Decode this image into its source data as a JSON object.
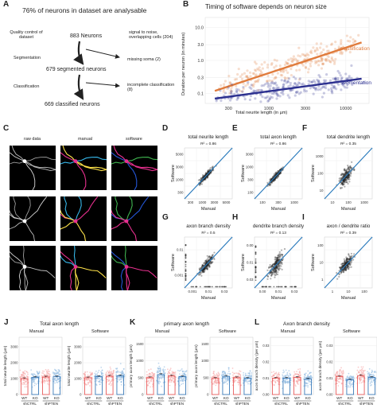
{
  "panels": {
    "A": {
      "letter": "A",
      "title": "76% of neurons in dataset are analysable",
      "steps": [
        {
          "label": "Quality control of dataset",
          "count": "883 Neurons",
          "excluded": "signal to noise, overlapping cells (204)"
        },
        {
          "label": "Segmentation",
          "count": "679 segmented neurons",
          "excluded": "missing soma (2)"
        },
        {
          "label": "Classification",
          "count": "669 classified neurons",
          "excluded": "incomplete classification (8)"
        }
      ]
    },
    "B": {
      "letter": "B",
      "title": "Timing of software depends on neuron size"
    },
    "C": {
      "letter": "C",
      "columns": [
        "raw data",
        "manual",
        "software"
      ]
    },
    "J": {
      "letter": "J",
      "title": "Total axon length"
    },
    "K": {
      "letter": "K",
      "title": "primary axon length"
    },
    "L": {
      "letter": "L",
      "title": "Axon branch density"
    }
  },
  "chart_data": [
    {
      "id": "B",
      "type": "scatter",
      "title": "Timing of software depends on neuron size",
      "xlabel": "Total neurite length (in µm)",
      "ylabel": "Duration per neuron (in minutes)",
      "xscale": "log",
      "yscale": "log",
      "xticks": [
        "300",
        "1000",
        "3000",
        "10000"
      ],
      "yticks": [
        "10.0",
        "3.0",
        "1.0",
        "0.3",
        "0.1"
      ],
      "xlim": [
        150,
        20000
      ],
      "ylim": [
        0.05,
        20
      ],
      "series": [
        {
          "name": "classification",
          "color": "#e07b3c",
          "fit": [
            [
              200,
              0.12
            ],
            [
              16000,
              3.5
            ]
          ]
        },
        {
          "name": "segmentation",
          "color": "#2b2f8f",
          "fit": [
            [
              200,
              0.07
            ],
            [
              16000,
              0.28
            ]
          ]
        }
      ]
    },
    {
      "id": "D",
      "letter": "D",
      "type": "scatter",
      "title": "total neurite length",
      "r2": "R² = 0.86",
      "xlabel": "Manual",
      "ylabel": "Software",
      "xticks": [
        "300",
        "1000",
        "3000",
        "5000"
      ],
      "yticks": [
        "5000",
        "3000",
        "1000",
        "300"
      ],
      "outliers": false
    },
    {
      "id": "E",
      "letter": "E",
      "type": "scatter",
      "title": "total axon length",
      "r2": "R² = 0.86",
      "xlabel": "Manual",
      "ylabel": "Software",
      "xticks": [
        "100",
        "300",
        "1000"
      ],
      "yticks": [
        "3000",
        "1000",
        "300",
        "100"
      ],
      "outliers": false
    },
    {
      "id": "F",
      "letter": "F",
      "type": "scatter",
      "title": "total dendrite length",
      "r2": "R² = 0.35",
      "xlabel": "Manual",
      "ylabel": "Software",
      "xticks": [
        "10",
        "100",
        "1000"
      ],
      "yticks": [
        "1000",
        "100",
        "10"
      ],
      "outliers": false
    },
    {
      "id": "G",
      "letter": "G",
      "type": "scatter",
      "title": "axon branch density",
      "r2": "R² = 0.5",
      "xlabel": "Manual",
      "ylabel": "Software",
      "xticks": [
        "0.001",
        "0.01",
        "0.03"
      ],
      "yticks": [
        "0.01",
        "0.001"
      ],
      "outliers": true
    },
    {
      "id": "H",
      "letter": "H",
      "type": "scatter",
      "title": "dendrite branch density",
      "r2": "R² = 0.13",
      "xlabel": "Manual",
      "ylabel": "Software",
      "xticks": [
        "0.00",
        "0.01",
        "0.03"
      ],
      "yticks": [
        "0.00",
        "0.01",
        "0.03"
      ],
      "outliers": true
    },
    {
      "id": "I",
      "letter": "I",
      "type": "scatter",
      "title": "axon / dendrite ratio",
      "r2": "R² = 0.39",
      "xlabel": "Manual",
      "ylabel": "Software",
      "xticks": [
        "1",
        "10",
        "100"
      ],
      "yticks": [
        "100",
        "10",
        "1"
      ],
      "outliers": false
    },
    {
      "id": "J1",
      "type": "bar",
      "title": "Manual",
      "ylabel": "total neurite length (µm)",
      "categories": [
        "WT",
        "KO",
        "WT",
        "KO"
      ],
      "groups": [
        "shCTRL",
        "shPTEN"
      ],
      "yticks": [
        "3000",
        "2000",
        "1000",
        "0"
      ],
      "ylim": [
        0,
        3600
      ],
      "values": [
        1000,
        1080,
        1100,
        1120
      ]
    },
    {
      "id": "J2",
      "type": "bar",
      "title": "Software",
      "ylabel": "total neurite length (µm)",
      "categories": [
        "WT",
        "KO",
        "WT",
        "KO"
      ],
      "groups": [
        "shCTRL",
        "shPTEN"
      ],
      "yticks": [
        "3000",
        "2000",
        "1000",
        "0"
      ],
      "ylim": [
        0,
        3600
      ],
      "values": [
        1050,
        1120,
        1150,
        1180
      ]
    },
    {
      "id": "K1",
      "type": "bar",
      "title": "Manual",
      "ylabel": "primary axon length (µm)",
      "categories": [
        "WT",
        "KO",
        "WT",
        "KO"
      ],
      "groups": [
        "shCTRL",
        "shPTEN"
      ],
      "yticks": [
        "1500",
        "1000",
        "500",
        "0"
      ],
      "ylim": [
        0,
        1700
      ],
      "values": [
        500,
        590,
        550,
        530
      ]
    },
    {
      "id": "K2",
      "type": "bar",
      "title": "Software",
      "ylabel": "primary axon length (µm)",
      "categories": [
        "WT",
        "KO",
        "WT",
        "KO"
      ],
      "groups": [
        "shCTRL",
        "shPTEN"
      ],
      "yticks": [
        "1500",
        "1000",
        "500",
        "0"
      ],
      "ylim": [
        0,
        1700
      ],
      "values": [
        480,
        540,
        500,
        480
      ]
    },
    {
      "id": "L1",
      "type": "bar",
      "title": "Manual",
      "ylabel": "axon branch density (per µm)",
      "categories": [
        "WT",
        "KO",
        "WT",
        "KO"
      ],
      "groups": [
        "shCTRL",
        "shPTEN"
      ],
      "yticks": [
        "0.03",
        "0.02",
        "0.01",
        "0.00"
      ],
      "ylim": [
        0,
        0.035
      ],
      "values": [
        0.01,
        0.01,
        0.0105,
        0.0095
      ]
    },
    {
      "id": "L2",
      "type": "bar",
      "title": "Software",
      "ylabel": "axon branch density (per µm)",
      "categories": [
        "WT",
        "KO",
        "WT",
        "KO"
      ],
      "groups": [
        "shCTRL",
        "shPTEN"
      ],
      "yticks": [
        "0.03",
        "0.02",
        "0.01",
        "0.00"
      ],
      "ylim": [
        0,
        0.035
      ],
      "values": [
        0.011,
        0.009,
        0.0115,
        0.0105
      ]
    }
  ]
}
